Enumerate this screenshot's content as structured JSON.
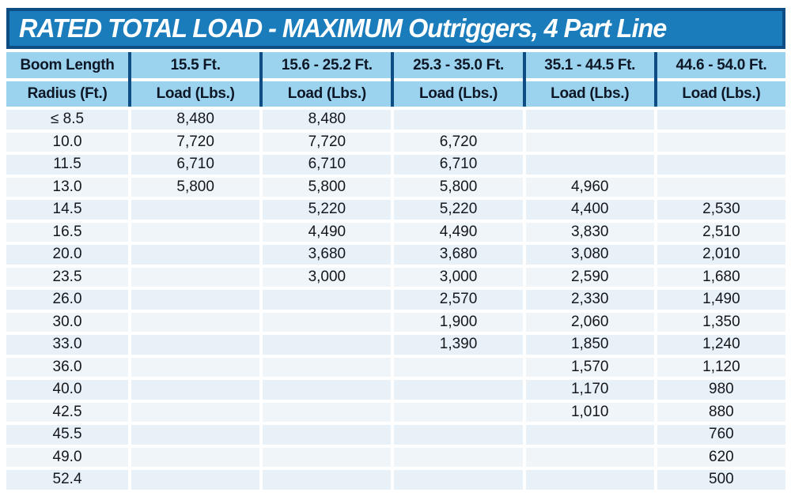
{
  "title": "RATED TOTAL LOAD - MAXIMUM Outriggers, 4 Part Line",
  "table": {
    "columns": [
      "Boom Length",
      "15.5 Ft.",
      "15.6 - 25.2 Ft.",
      "25.3 - 35.0 Ft.",
      "35.1 - 44.5 Ft.",
      "44.6 - 54.0 Ft."
    ],
    "subcolumns": [
      "Radius (Ft.)",
      "Load (Lbs.)",
      "Load (Lbs.)",
      "Load (Lbs.)",
      "Load (Lbs.)",
      "Load (Lbs.)"
    ],
    "rows": [
      {
        "radius": "≤ 8.5",
        "loads": [
          "8,480",
          "8,480",
          "",
          "",
          ""
        ]
      },
      {
        "radius": "10.0",
        "loads": [
          "7,720",
          "7,720",
          "6,720",
          "",
          ""
        ]
      },
      {
        "radius": "11.5",
        "loads": [
          "6,710",
          "6,710",
          "6,710",
          "",
          ""
        ]
      },
      {
        "radius": "13.0",
        "loads": [
          "5,800",
          "5,800",
          "5,800",
          "4,960",
          ""
        ]
      },
      {
        "radius": "14.5",
        "loads": [
          "",
          "5,220",
          "5,220",
          "4,400",
          "2,530"
        ]
      },
      {
        "radius": "16.5",
        "loads": [
          "",
          "4,490",
          "4,490",
          "3,830",
          "2,510"
        ]
      },
      {
        "radius": "20.0",
        "loads": [
          "",
          "3,680",
          "3,680",
          "3,080",
          "2,010"
        ]
      },
      {
        "radius": "23.5",
        "loads": [
          "",
          "3,000",
          "3,000",
          "2,590",
          "1,680"
        ]
      },
      {
        "radius": "26.0",
        "loads": [
          "",
          "",
          "2,570",
          "2,330",
          "1,490"
        ]
      },
      {
        "radius": "30.0",
        "loads": [
          "",
          "",
          "1,900",
          "2,060",
          "1,350"
        ]
      },
      {
        "radius": "33.0",
        "loads": [
          "",
          "",
          "1,390",
          "1,850",
          "1,240"
        ]
      },
      {
        "radius": "36.0",
        "loads": [
          "",
          "",
          "",
          "1,570",
          "1,120"
        ]
      },
      {
        "radius": "40.0",
        "loads": [
          "",
          "",
          "",
          "1,170",
          "980"
        ]
      },
      {
        "radius": "42.5",
        "loads": [
          "",
          "",
          "",
          "1,010",
          "880"
        ]
      },
      {
        "radius": "45.5",
        "loads": [
          "",
          "",
          "",
          "",
          "760"
        ]
      },
      {
        "radius": "49.0",
        "loads": [
          "",
          "",
          "",
          "",
          "620"
        ]
      },
      {
        "radius": "52.4",
        "loads": [
          "",
          "",
          "",
          "",
          "500"
        ]
      }
    ]
  },
  "colors": {
    "page_bg": "#ffffff",
    "title_bar_bg": "#1b7cbc",
    "title_text": "#ffffff",
    "navy_border": "#0d4d83",
    "header_cell_bg": "#9bd2ee",
    "header_text": "#0e1726",
    "data_cell_bg": "#e8f1f7",
    "data_cell_bg_alt": "#eff5f9",
    "data_text": "#14181c"
  }
}
